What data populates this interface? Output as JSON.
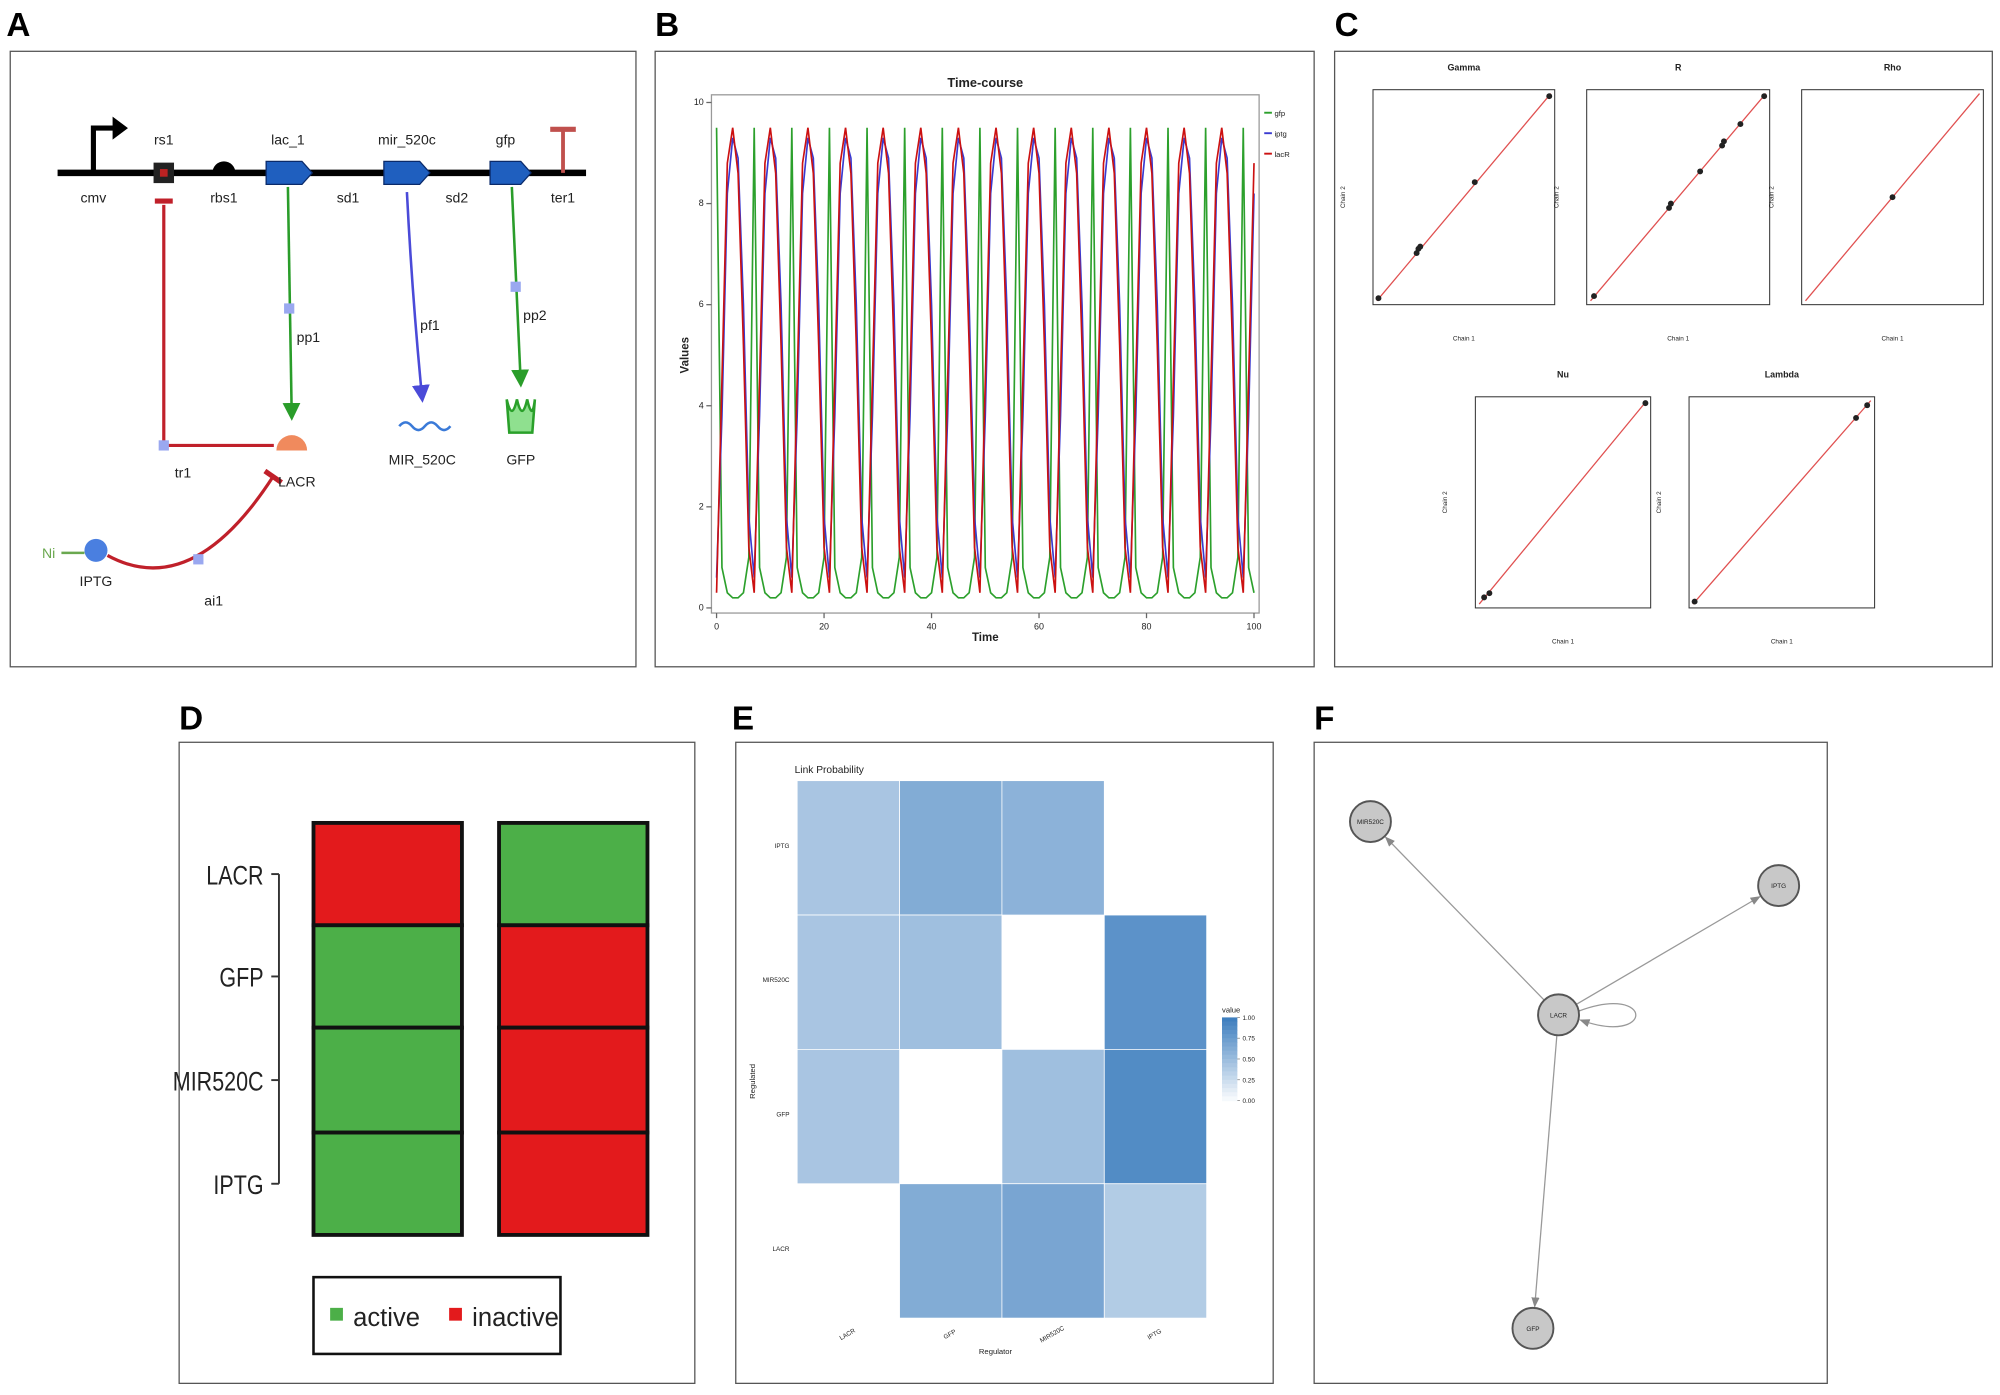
{
  "panel_labels": [
    "A",
    "B",
    "C",
    "D",
    "E",
    "F"
  ],
  "diagram": {
    "parts": [
      "cmv",
      "rs1",
      "rbs1",
      "lac_1",
      "sd1",
      "mir_520c",
      "sd2",
      "gfp",
      "ter1"
    ],
    "reactions": [
      "pp1",
      "pf1",
      "pp2",
      "tr1",
      "ai1"
    ],
    "species": [
      "LACR",
      "MIR_520C",
      "GFP",
      "IPTG",
      "Ni"
    ]
  },
  "chart_data": [
    {
      "type": "line",
      "title": "Time-course",
      "xlabel": "Time",
      "ylabel": "Values",
      "xlim": [
        0,
        100
      ],
      "ylim": [
        0,
        10
      ],
      "xticks": [
        0,
        20,
        40,
        60,
        80,
        100
      ],
      "yticks": [
        0,
        2,
        4,
        6,
        8,
        10
      ],
      "x": [
        0,
        1,
        2,
        3,
        4,
        5,
        6,
        7,
        8,
        9,
        10,
        11,
        12,
        13,
        14,
        15,
        16,
        17,
        18,
        19,
        20,
        21,
        22,
        23,
        24,
        25,
        26,
        27,
        28,
        29,
        30,
        31,
        32,
        33,
        34,
        35,
        36,
        37,
        38,
        39,
        40,
        41,
        42,
        43,
        44,
        45,
        46,
        47,
        48,
        49,
        50,
        51,
        52,
        53,
        54,
        55,
        56,
        57,
        58,
        59,
        60,
        61,
        62,
        63,
        64,
        65,
        66,
        67,
        68,
        69,
        70,
        71,
        72,
        73,
        74,
        75,
        76,
        77,
        78,
        79,
        80,
        81,
        82,
        83,
        84,
        85,
        86,
        87,
        88,
        89,
        90,
        91,
        92,
        93,
        94,
        95,
        96,
        97,
        98,
        99,
        100
      ],
      "series": [
        {
          "name": "gfp",
          "color": "#2ca02c",
          "values": [
            9.5,
            0.8,
            0.3,
            0.2,
            0.2,
            0.3,
            1.0,
            9.5,
            0.8,
            0.3,
            0.2,
            0.2,
            0.3,
            1.0,
            9.5,
            0.8,
            0.3,
            0.2,
            0.2,
            0.3,
            1.0,
            9.5,
            0.8,
            0.3,
            0.2,
            0.2,
            0.3,
            1.0,
            9.5,
            0.8,
            0.3,
            0.2,
            0.2,
            0.3,
            1.0,
            9.5,
            0.8,
            0.3,
            0.2,
            0.2,
            0.3,
            1.0,
            9.5,
            0.8,
            0.3,
            0.2,
            0.2,
            0.3,
            1.0,
            9.5,
            0.8,
            0.3,
            0.2,
            0.2,
            0.3,
            1.0,
            9.5,
            0.8,
            0.3,
            0.2,
            0.2,
            0.3,
            1.0,
            9.5,
            0.8,
            0.3,
            0.2,
            0.2,
            0.3,
            1.0,
            9.5,
            0.8,
            0.3,
            0.2,
            0.2,
            0.3,
            1.0,
            9.5,
            0.8,
            0.3,
            0.2,
            0.2,
            0.3,
            1.0,
            9.5,
            0.8,
            0.3,
            0.2,
            0.2,
            0.3,
            1.0,
            9.5,
            0.8,
            0.3,
            0.2,
            0.2,
            0.3,
            1.0,
            9.5,
            0.8,
            0.3
          ]
        },
        {
          "name": "iptg",
          "color": "#3a3ad0",
          "values": [
            0.6,
            3.8,
            8.2,
            9.3,
            8.9,
            6.0,
            1.8,
            0.6,
            3.8,
            8.2,
            9.3,
            8.9,
            6.0,
            1.8,
            0.6,
            3.8,
            8.2,
            9.3,
            8.9,
            6.0,
            1.8,
            0.6,
            3.8,
            8.2,
            9.3,
            8.9,
            6.0,
            1.8,
            0.6,
            3.8,
            8.2,
            9.3,
            8.9,
            6.0,
            1.8,
            0.6,
            3.8,
            8.2,
            9.3,
            8.9,
            6.0,
            1.8,
            0.6,
            3.8,
            8.2,
            9.3,
            8.9,
            6.0,
            1.8,
            0.6,
            3.8,
            8.2,
            9.3,
            8.9,
            6.0,
            1.8,
            0.6,
            3.8,
            8.2,
            9.3,
            8.9,
            6.0,
            1.8,
            0.6,
            3.8,
            8.2,
            9.3,
            8.9,
            6.0,
            1.8,
            0.6,
            3.8,
            8.2,
            9.3,
            8.9,
            6.0,
            1.8,
            0.6,
            3.8,
            8.2,
            9.3,
            8.9,
            6.0,
            1.8,
            0.6,
            3.8,
            8.2,
            9.3,
            8.9,
            6.0,
            1.8,
            0.6,
            3.8,
            8.2,
            9.3,
            8.9,
            6.0,
            1.8,
            0.6,
            3.8,
            8.2
          ]
        },
        {
          "name": "lacR",
          "color": "#cc1111",
          "values": [
            0.3,
            4.5,
            8.8,
            9.5,
            8.6,
            5.2,
            1.2,
            0.3,
            4.5,
            8.8,
            9.5,
            8.6,
            5.2,
            1.2,
            0.3,
            4.5,
            8.8,
            9.5,
            8.6,
            5.2,
            1.2,
            0.3,
            4.5,
            8.8,
            9.5,
            8.6,
            5.2,
            1.2,
            0.3,
            4.5,
            8.8,
            9.5,
            8.6,
            5.2,
            1.2,
            0.3,
            4.5,
            8.8,
            9.5,
            8.6,
            5.2,
            1.2,
            0.3,
            4.5,
            8.8,
            9.5,
            8.6,
            5.2,
            1.2,
            0.3,
            4.5,
            8.8,
            9.5,
            8.6,
            5.2,
            1.2,
            0.3,
            4.5,
            8.8,
            9.5,
            8.6,
            5.2,
            1.2,
            0.3,
            4.5,
            8.8,
            9.5,
            8.6,
            5.2,
            1.2,
            0.3,
            4.5,
            8.8,
            9.5,
            8.6,
            5.2,
            1.2,
            0.3,
            4.5,
            8.8,
            9.5,
            8.6,
            5.2,
            1.2,
            0.3,
            4.5,
            8.8,
            9.5,
            8.6,
            5.2,
            1.2,
            0.3,
            4.5,
            8.8,
            9.5,
            8.6,
            5.2,
            1.2,
            0.3,
            4.5,
            8.8
          ]
        }
      ]
    },
    {
      "type": "scatter",
      "title": "Gamma",
      "xlabel": "Chain 1",
      "ylabel": "Chain 2",
      "xlim": [
        0,
        1
      ],
      "ylim": [
        0,
        1
      ],
      "color": "#222222",
      "x": [
        0.03,
        0.24,
        0.25,
        0.26,
        0.56,
        0.97
      ],
      "values": [
        0.03,
        0.24,
        0.26,
        0.27,
        0.57,
        0.97
      ]
    },
    {
      "type": "scatter",
      "title": "R",
      "xlabel": "Chain 1",
      "ylabel": "Chain 2",
      "xlim": [
        0,
        1
      ],
      "ylim": [
        0,
        1
      ],
      "color": "#222222",
      "x": [
        0.04,
        0.45,
        0.46,
        0.62,
        0.74,
        0.75,
        0.84,
        0.97
      ],
      "values": [
        0.04,
        0.45,
        0.47,
        0.62,
        0.74,
        0.76,
        0.84,
        0.97
      ]
    },
    {
      "type": "scatter",
      "title": "Rho",
      "xlabel": "Chain 1",
      "ylabel": "Chain 2",
      "xlim": [
        0,
        1
      ],
      "ylim": [
        0,
        1
      ],
      "color": "#222222",
      "x": [
        0.5
      ],
      "values": [
        0.5
      ]
    },
    {
      "type": "scatter",
      "title": "Nu",
      "xlabel": "Chain 1",
      "ylabel": "Chain 2",
      "xlim": [
        0,
        1
      ],
      "ylim": [
        0,
        1
      ],
      "color": "#222222",
      "x": [
        0.05,
        0.08,
        0.97
      ],
      "values": [
        0.05,
        0.07,
        0.97
      ]
    },
    {
      "type": "scatter",
      "title": "Lambda",
      "xlabel": "Chain 1",
      "ylabel": "Chain 2",
      "xlim": [
        0,
        1
      ],
      "ylim": [
        0,
        1
      ],
      "color": "#222222",
      "x": [
        0.03,
        0.9,
        0.96
      ],
      "values": [
        0.03,
        0.9,
        0.96
      ]
    },
    {
      "type": "heatmap",
      "title": "Link Probability",
      "xlabel": "Regulator",
      "ylabel": "Regulated",
      "legend_title": "value",
      "color": "#3f7fbf",
      "categories": [
        "LACR",
        "GFP",
        "MIR520C",
        "IPTG"
      ],
      "rows": [
        "IPTG",
        "MIR520C",
        "GFP",
        "LACR"
      ],
      "values": [
        [
          0.45,
          0.65,
          0.6,
          null
        ],
        [
          0.45,
          0.5,
          null,
          0.85
        ],
        [
          0.45,
          null,
          0.5,
          0.9
        ],
        [
          null,
          0.65,
          0.7,
          0.4
        ]
      ],
      "clim": [
        0,
        1
      ],
      "cticks": [
        {
          "value": 0,
          "label": "0.00"
        },
        {
          "value": 0.25,
          "label": "0.25"
        },
        {
          "value": 0.5,
          "label": "0.50"
        },
        {
          "value": 0.75,
          "label": "0.75"
        },
        {
          "value": 1,
          "label": "1.00"
        }
      ]
    }
  ],
  "states": {
    "rows": [
      "LACR",
      "GFP",
      "MIR520C",
      "IPTG"
    ],
    "columns": [
      [
        "inactive",
        "active",
        "active",
        "active"
      ],
      [
        "active",
        "inactive",
        "inactive",
        "inactive"
      ]
    ],
    "legend": [
      {
        "name": "active",
        "color": "#4caf48"
      },
      {
        "name": "inactive",
        "color": "#e31a1c"
      }
    ]
  },
  "network": {
    "nodes": [
      "MIR520C",
      "IPTG",
      "LACR",
      "GFP"
    ],
    "edges": [
      {
        "from": "LACR",
        "to": "MIR520C"
      },
      {
        "from": "LACR",
        "to": "IPTG"
      },
      {
        "from": "LACR",
        "to": "GFP"
      },
      {
        "from": "LACR",
        "to": "LACR"
      }
    ]
  }
}
